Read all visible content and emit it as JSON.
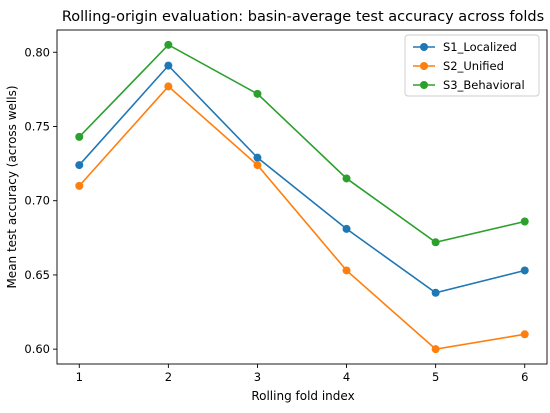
{
  "chart_data": {
    "type": "line",
    "title": "Rolling-origin evaluation: basin-average test accuracy across folds",
    "xlabel": "Rolling fold index",
    "ylabel": "Mean test accuracy (across wells)",
    "x": [
      1,
      2,
      3,
      4,
      5,
      6
    ],
    "x_ticks": [
      "1",
      "2",
      "3",
      "4",
      "5",
      "6"
    ],
    "y_ticks": [
      "0.60",
      "0.65",
      "0.70",
      "0.75",
      "0.80"
    ],
    "xlim": [
      0.75,
      6.25
    ],
    "ylim": [
      0.59,
      0.815
    ],
    "grid": false,
    "legend_position": "top-right",
    "series": [
      {
        "name": "S1_Localized",
        "color": "#1f77b4",
        "values": [
          0.724,
          0.791,
          0.729,
          0.681,
          0.638,
          0.653
        ]
      },
      {
        "name": "S2_Unified",
        "color": "#ff7f0e",
        "values": [
          0.71,
          0.777,
          0.724,
          0.653,
          0.6,
          0.61
        ]
      },
      {
        "name": "S3_Behavioral",
        "color": "#2ca02c",
        "values": [
          0.743,
          0.805,
          0.772,
          0.715,
          0.672,
          0.686
        ]
      }
    ]
  }
}
